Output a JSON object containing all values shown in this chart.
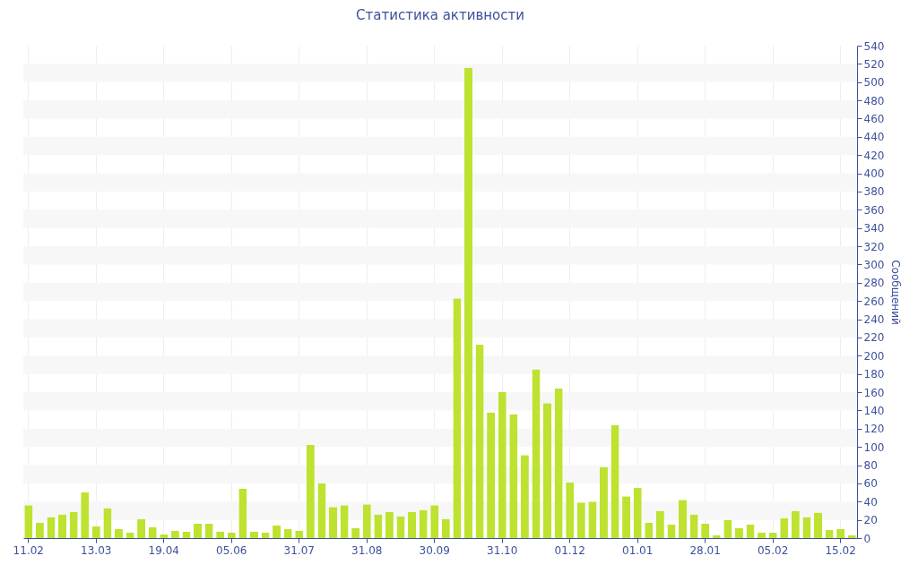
{
  "chart_data": {
    "type": "bar",
    "title": "Статистика активности",
    "ylabel": "Сообщений",
    "categories": [
      "11.02",
      null,
      null,
      null,
      null,
      null,
      "13.03",
      null,
      null,
      null,
      null,
      null,
      "19.04",
      null,
      null,
      null,
      null,
      null,
      "05.06",
      null,
      null,
      null,
      null,
      null,
      "31.07",
      null,
      null,
      null,
      null,
      null,
      "31.08",
      null,
      null,
      null,
      null,
      null,
      "30.09",
      null,
      null,
      null,
      null,
      null,
      "31.10",
      null,
      null,
      null,
      null,
      null,
      "01.12",
      null,
      null,
      null,
      null,
      null,
      "01.01",
      null,
      null,
      null,
      null,
      null,
      "28.01",
      null,
      null,
      null,
      null,
      null,
      "05.02",
      null,
      null,
      null,
      null,
      null,
      "15.02",
      null
    ],
    "values": [
      36,
      17,
      23,
      26,
      29,
      50,
      13,
      33,
      10,
      6,
      21,
      12,
      4,
      8,
      7,
      16,
      16,
      7,
      6,
      54,
      7,
      6,
      14,
      10,
      8,
      102,
      60,
      34,
      36,
      11,
      37,
      26,
      29,
      24,
      29,
      31,
      36,
      21,
      263,
      516,
      212,
      138,
      160,
      136,
      91,
      185,
      148,
      164,
      61,
      39,
      40,
      78,
      124,
      46,
      55,
      17,
      30,
      15,
      42,
      26,
      16,
      3,
      20,
      11,
      15,
      6,
      6,
      22,
      30,
      23,
      28,
      9,
      10,
      3
    ],
    "color": "#bde22f",
    "ylim": [
      0,
      540
    ],
    "yticks": [
      0,
      20,
      40,
      60,
      80,
      100,
      120,
      140,
      160,
      180,
      200,
      220,
      240,
      260,
      280,
      300,
      320,
      340,
      360,
      380,
      400,
      420,
      440,
      460,
      480,
      500,
      520,
      540
    ],
    "grid": true
  }
}
